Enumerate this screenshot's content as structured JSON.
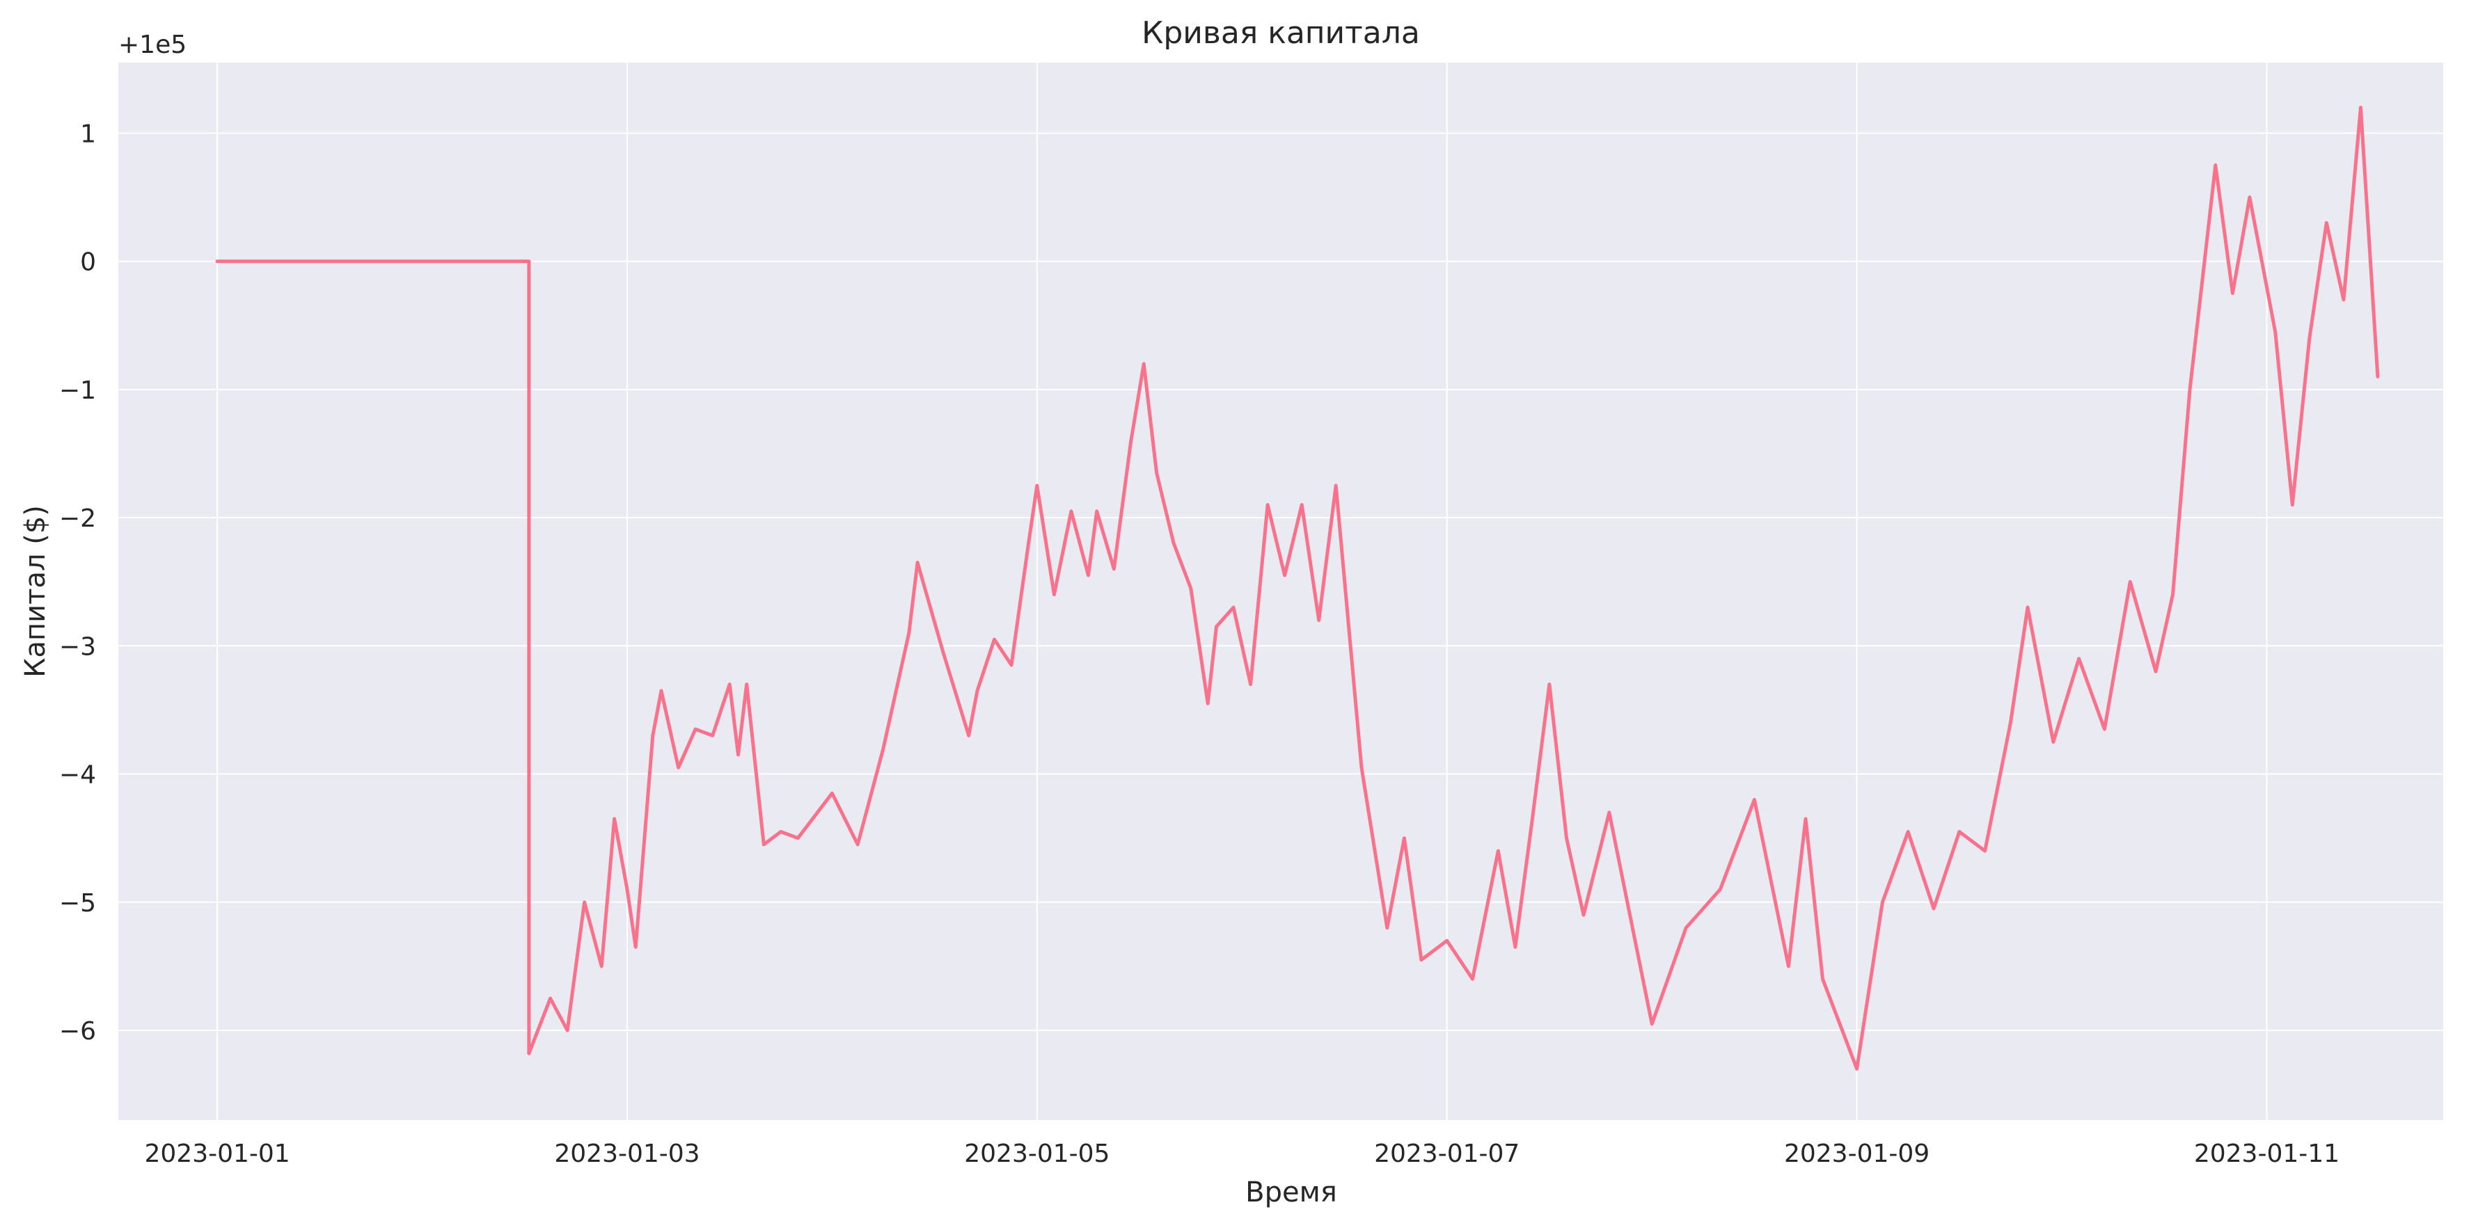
{
  "chart_data": {
    "type": "line",
    "title": "Кривая капитала",
    "xlabel": "Время",
    "ylabel": "Капитал ($)",
    "offset_label": "+1e5",
    "x_ticks": [
      "2023-01-01",
      "2023-01-03",
      "2023-01-05",
      "2023-01-07",
      "2023-01-09",
      "2023-01-11"
    ],
    "y_ticks": [
      "1",
      "0",
      "−1",
      "−2",
      "−3",
      "−4",
      "−5",
      "−6"
    ],
    "xlim": [
      "2022-12-31T12:25",
      "2023-01-11T20:40"
    ],
    "ylim": [
      -6.7,
      1.55
    ],
    "grid": true,
    "line_color": "#f7728a",
    "background_color": "#eaeaf2",
    "series": [
      {
        "x": [
          "2023-01-01T00:00",
          "2023-01-02T12:30",
          "2023-01-02T12:30",
          "2023-01-02T15:00",
          "2023-01-02T17:00",
          "2023-01-02T19:00",
          "2023-01-02T21:00",
          "2023-01-02T22:30",
          "2023-01-03T00:00",
          "2023-01-03T01:00",
          "2023-01-03T03:00",
          "2023-01-03T04:00",
          "2023-01-03T06:00",
          "2023-01-03T08:00",
          "2023-01-03T10:00",
          "2023-01-03T12:00",
          "2023-01-03T13:00",
          "2023-01-03T14:00",
          "2023-01-03T16:00",
          "2023-01-03T18:00",
          "2023-01-03T20:00",
          "2023-01-04T00:00",
          "2023-01-04T03:00",
          "2023-01-04T06:00",
          "2023-01-04T09:00",
          "2023-01-04T10:00",
          "2023-01-04T13:00",
          "2023-01-04T16:00",
          "2023-01-04T17:00",
          "2023-01-04T19:00",
          "2023-01-04T21:00",
          "2023-01-04T23:00",
          "2023-01-05T00:00",
          "2023-01-05T02:00",
          "2023-01-05T04:00",
          "2023-01-05T06:00",
          "2023-01-05T07:00",
          "2023-01-05T09:00",
          "2023-01-05T11:00",
          "2023-01-05T12:30",
          "2023-01-05T14:00",
          "2023-01-05T16:00",
          "2023-01-05T18:00",
          "2023-01-05T20:00",
          "2023-01-05T21:00",
          "2023-01-05T23:00",
          "2023-01-06T01:00",
          "2023-01-06T03:00",
          "2023-01-06T05:00",
          "2023-01-06T07:00",
          "2023-01-06T09:00",
          "2023-01-06T11:00",
          "2023-01-06T14:00",
          "2023-01-06T17:00",
          "2023-01-06T19:00",
          "2023-01-06T21:00",
          "2023-01-07T00:00",
          "2023-01-07T03:00",
          "2023-01-07T06:00",
          "2023-01-07T08:00",
          "2023-01-07T10:00",
          "2023-01-07T12:00",
          "2023-01-07T14:00",
          "2023-01-07T16:00",
          "2023-01-07T19:00",
          "2023-01-08T00:00",
          "2023-01-08T04:00",
          "2023-01-08T08:00",
          "2023-01-08T12:00",
          "2023-01-08T14:00",
          "2023-01-08T16:00",
          "2023-01-08T18:00",
          "2023-01-08T20:00",
          "2023-01-08T22:00",
          "2023-01-09T00:00",
          "2023-01-09T03:00",
          "2023-01-09T06:00",
          "2023-01-09T09:00",
          "2023-01-09T12:00",
          "2023-01-09T15:00",
          "2023-01-09T18:00",
          "2023-01-09T20:00",
          "2023-01-09T23:00",
          "2023-01-10T02:00",
          "2023-01-10T05:00",
          "2023-01-10T08:00",
          "2023-01-10T11:00",
          "2023-01-10T13:00",
          "2023-01-10T15:00",
          "2023-01-10T18:00",
          "2023-01-10T20:00",
          "2023-01-10T22:00",
          "2023-01-11T01:00",
          "2023-01-11T03:00",
          "2023-01-11T05:00",
          "2023-01-11T07:00",
          "2023-01-11T09:00",
          "2023-01-11T11:00",
          "2023-01-11T13:00"
        ],
        "y": [
          0,
          0,
          -6.18,
          -5.75,
          -6.0,
          -5.0,
          -5.5,
          -4.35,
          -4.9,
          -5.35,
          -3.7,
          -3.35,
          -3.95,
          -3.65,
          -3.7,
          -3.3,
          -3.85,
          -3.3,
          -4.55,
          -4.45,
          -4.5,
          -4.15,
          -4.55,
          -3.8,
          -2.9,
          -2.35,
          -3.05,
          -3.7,
          -3.35,
          -2.95,
          -3.15,
          -2.2,
          -1.75,
          -2.6,
          -1.95,
          -2.45,
          -1.95,
          -2.4,
          -1.4,
          -0.8,
          -1.65,
          -2.2,
          -2.55,
          -3.45,
          -2.85,
          -2.7,
          -3.3,
          -1.9,
          -2.45,
          -1.9,
          -2.8,
          -1.75,
          -3.95,
          -5.2,
          -4.5,
          -5.45,
          -5.3,
          -5.6,
          -4.6,
          -5.35,
          -4.35,
          -3.3,
          -4.5,
          -5.1,
          -4.3,
          -5.95,
          -5.2,
          -4.9,
          -4.2,
          -4.85,
          -5.5,
          -4.35,
          -5.6,
          -5.95,
          -6.3,
          -5.0,
          -4.45,
          -5.05,
          -4.45,
          -4.6,
          -3.6,
          -2.7,
          -3.75,
          -3.1,
          -3.65,
          -2.5,
          -3.2,
          -2.6,
          -1.0,
          0.75,
          -0.25,
          0.5,
          -0.55,
          -1.9,
          -0.6,
          0.3,
          -0.3,
          1.2,
          -0.9
        ]
      }
    ]
  }
}
